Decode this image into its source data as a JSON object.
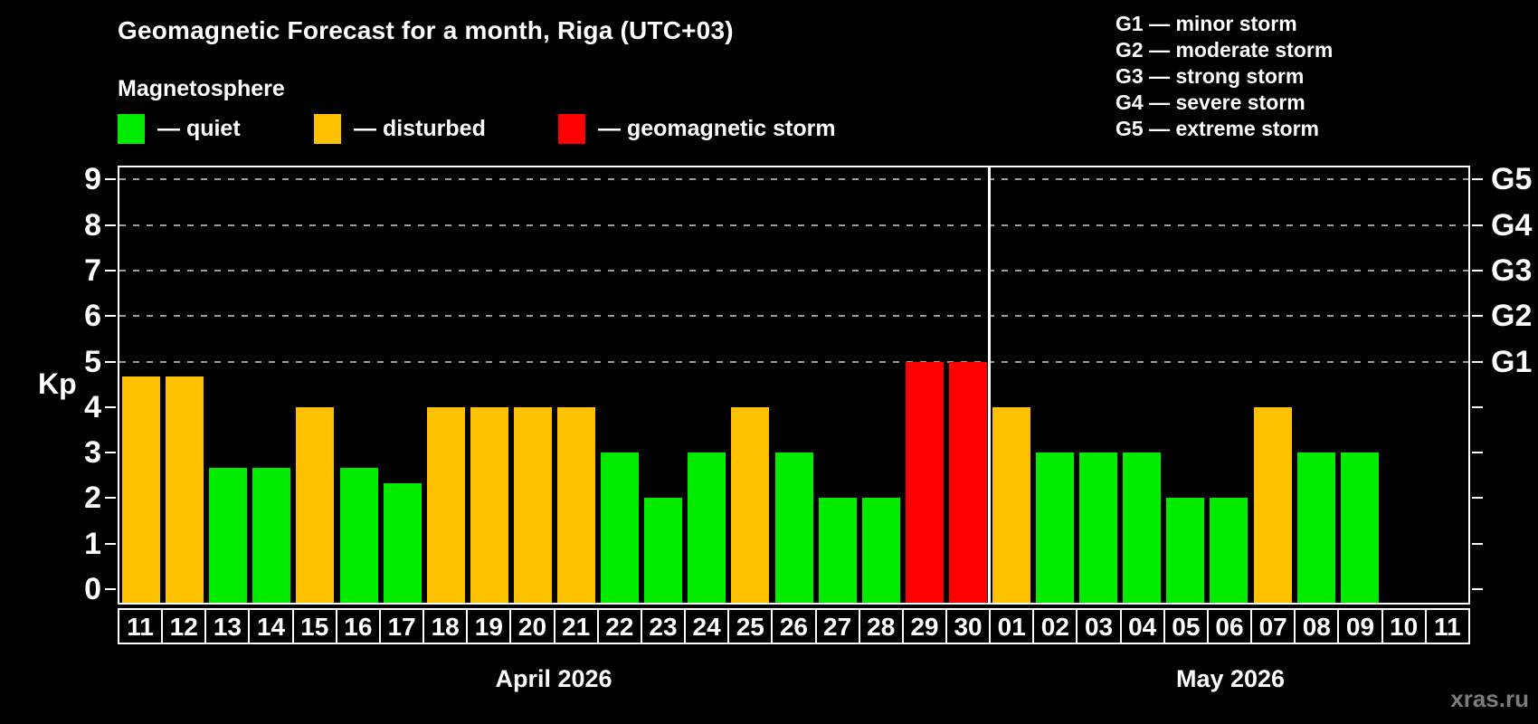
{
  "header": {
    "title": "Geomagnetic Forecast for a month, Riga (UTC+03)",
    "subtitle": "Magnetosphere"
  },
  "legend": {
    "items": [
      {
        "status": "quiet",
        "label": "— quiet"
      },
      {
        "status": "disturbed",
        "label": "— disturbed"
      },
      {
        "status": "storm",
        "label": "— geomagnetic storm"
      }
    ]
  },
  "g_legend": {
    "lines": [
      "G1 — minor storm",
      "G2 — moderate storm",
      "G3 — strong storm",
      "G4 — severe storm",
      "G5 — extreme storm"
    ]
  },
  "colors": {
    "quiet": "#00EB00",
    "disturbed": "#FFC000",
    "storm": "#FF0000",
    "grid": "#9C9C9C",
    "frame": "#FFFFFF",
    "background": "#000000",
    "watermark": "#7C7C7C"
  },
  "footer": {
    "watermark": "xras.ru"
  },
  "chart_data": {
    "type": "bar",
    "title": "Geomagnetic Forecast for a month, Riga (UTC+03)",
    "xlabel": "",
    "ylabel": "Kp",
    "ylim": [
      0,
      9.3
    ],
    "yticks": [
      0,
      1,
      2,
      3,
      4,
      5,
      6,
      7,
      8,
      9
    ],
    "gridlines_at": [
      5,
      6,
      7,
      8,
      9
    ],
    "grid_style": "dashed gray horizontal",
    "right_axis": [
      {
        "value": 5,
        "label": "G1"
      },
      {
        "value": 6,
        "label": "G2"
      },
      {
        "value": 7,
        "label": "G3"
      },
      {
        "value": 8,
        "label": "G4"
      },
      {
        "value": 9,
        "label": "G5"
      }
    ],
    "legend_position": "top-left",
    "months": [
      {
        "caption": "April 2026",
        "days": [
          {
            "day": "11",
            "kp": 4.67,
            "status": "disturbed"
          },
          {
            "day": "12",
            "kp": 4.67,
            "status": "disturbed"
          },
          {
            "day": "13",
            "kp": 2.67,
            "status": "quiet"
          },
          {
            "day": "14",
            "kp": 2.67,
            "status": "quiet"
          },
          {
            "day": "15",
            "kp": 4.0,
            "status": "disturbed"
          },
          {
            "day": "16",
            "kp": 2.67,
            "status": "quiet"
          },
          {
            "day": "17",
            "kp": 2.33,
            "status": "quiet"
          },
          {
            "day": "18",
            "kp": 4.0,
            "status": "disturbed"
          },
          {
            "day": "19",
            "kp": 4.0,
            "status": "disturbed"
          },
          {
            "day": "20",
            "kp": 4.0,
            "status": "disturbed"
          },
          {
            "day": "21",
            "kp": 4.0,
            "status": "disturbed"
          },
          {
            "day": "22",
            "kp": 3.0,
            "status": "quiet"
          },
          {
            "day": "23",
            "kp": 2.0,
            "status": "quiet"
          },
          {
            "day": "24",
            "kp": 3.0,
            "status": "quiet"
          },
          {
            "day": "25",
            "kp": 4.0,
            "status": "disturbed"
          },
          {
            "day": "26",
            "kp": 3.0,
            "status": "quiet"
          },
          {
            "day": "27",
            "kp": 2.0,
            "status": "quiet"
          },
          {
            "day": "28",
            "kp": 2.0,
            "status": "quiet"
          },
          {
            "day": "29",
            "kp": 5.0,
            "status": "storm"
          },
          {
            "day": "30",
            "kp": 5.0,
            "status": "storm"
          }
        ]
      },
      {
        "caption": "May 2026",
        "days": [
          {
            "day": "01",
            "kp": 4.0,
            "status": "disturbed"
          },
          {
            "day": "02",
            "kp": 3.0,
            "status": "quiet"
          },
          {
            "day": "03",
            "kp": 3.0,
            "status": "quiet"
          },
          {
            "day": "04",
            "kp": 3.0,
            "status": "quiet"
          },
          {
            "day": "05",
            "kp": 2.0,
            "status": "quiet"
          },
          {
            "day": "06",
            "kp": 2.0,
            "status": "quiet"
          },
          {
            "day": "07",
            "kp": 4.0,
            "status": "disturbed"
          },
          {
            "day": "08",
            "kp": 3.0,
            "status": "quiet"
          },
          {
            "day": "09",
            "kp": 3.0,
            "status": "quiet"
          },
          {
            "day": "10",
            "kp": null,
            "status": "none"
          },
          {
            "day": "11",
            "kp": null,
            "status": "none"
          }
        ]
      }
    ]
  }
}
